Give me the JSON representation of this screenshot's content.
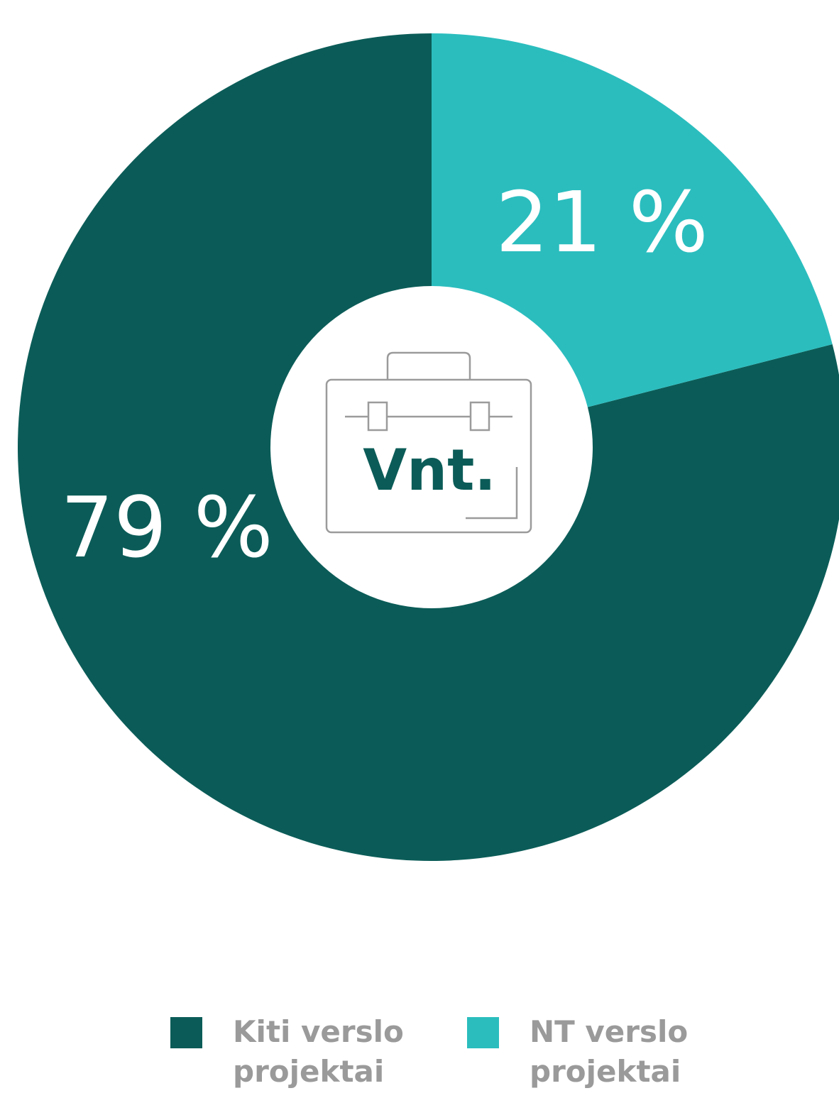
{
  "chart_data": {
    "type": "pie",
    "categories": [
      "Kiti verslo projektai",
      "NT verslo projektai"
    ],
    "values": [
      79,
      21
    ],
    "value_labels": [
      "79 %",
      "21 %"
    ],
    "colors": [
      "#0b5c58",
      "#2bbdbe"
    ],
    "center_label": "Vnt.",
    "legend": "bottom"
  }
}
